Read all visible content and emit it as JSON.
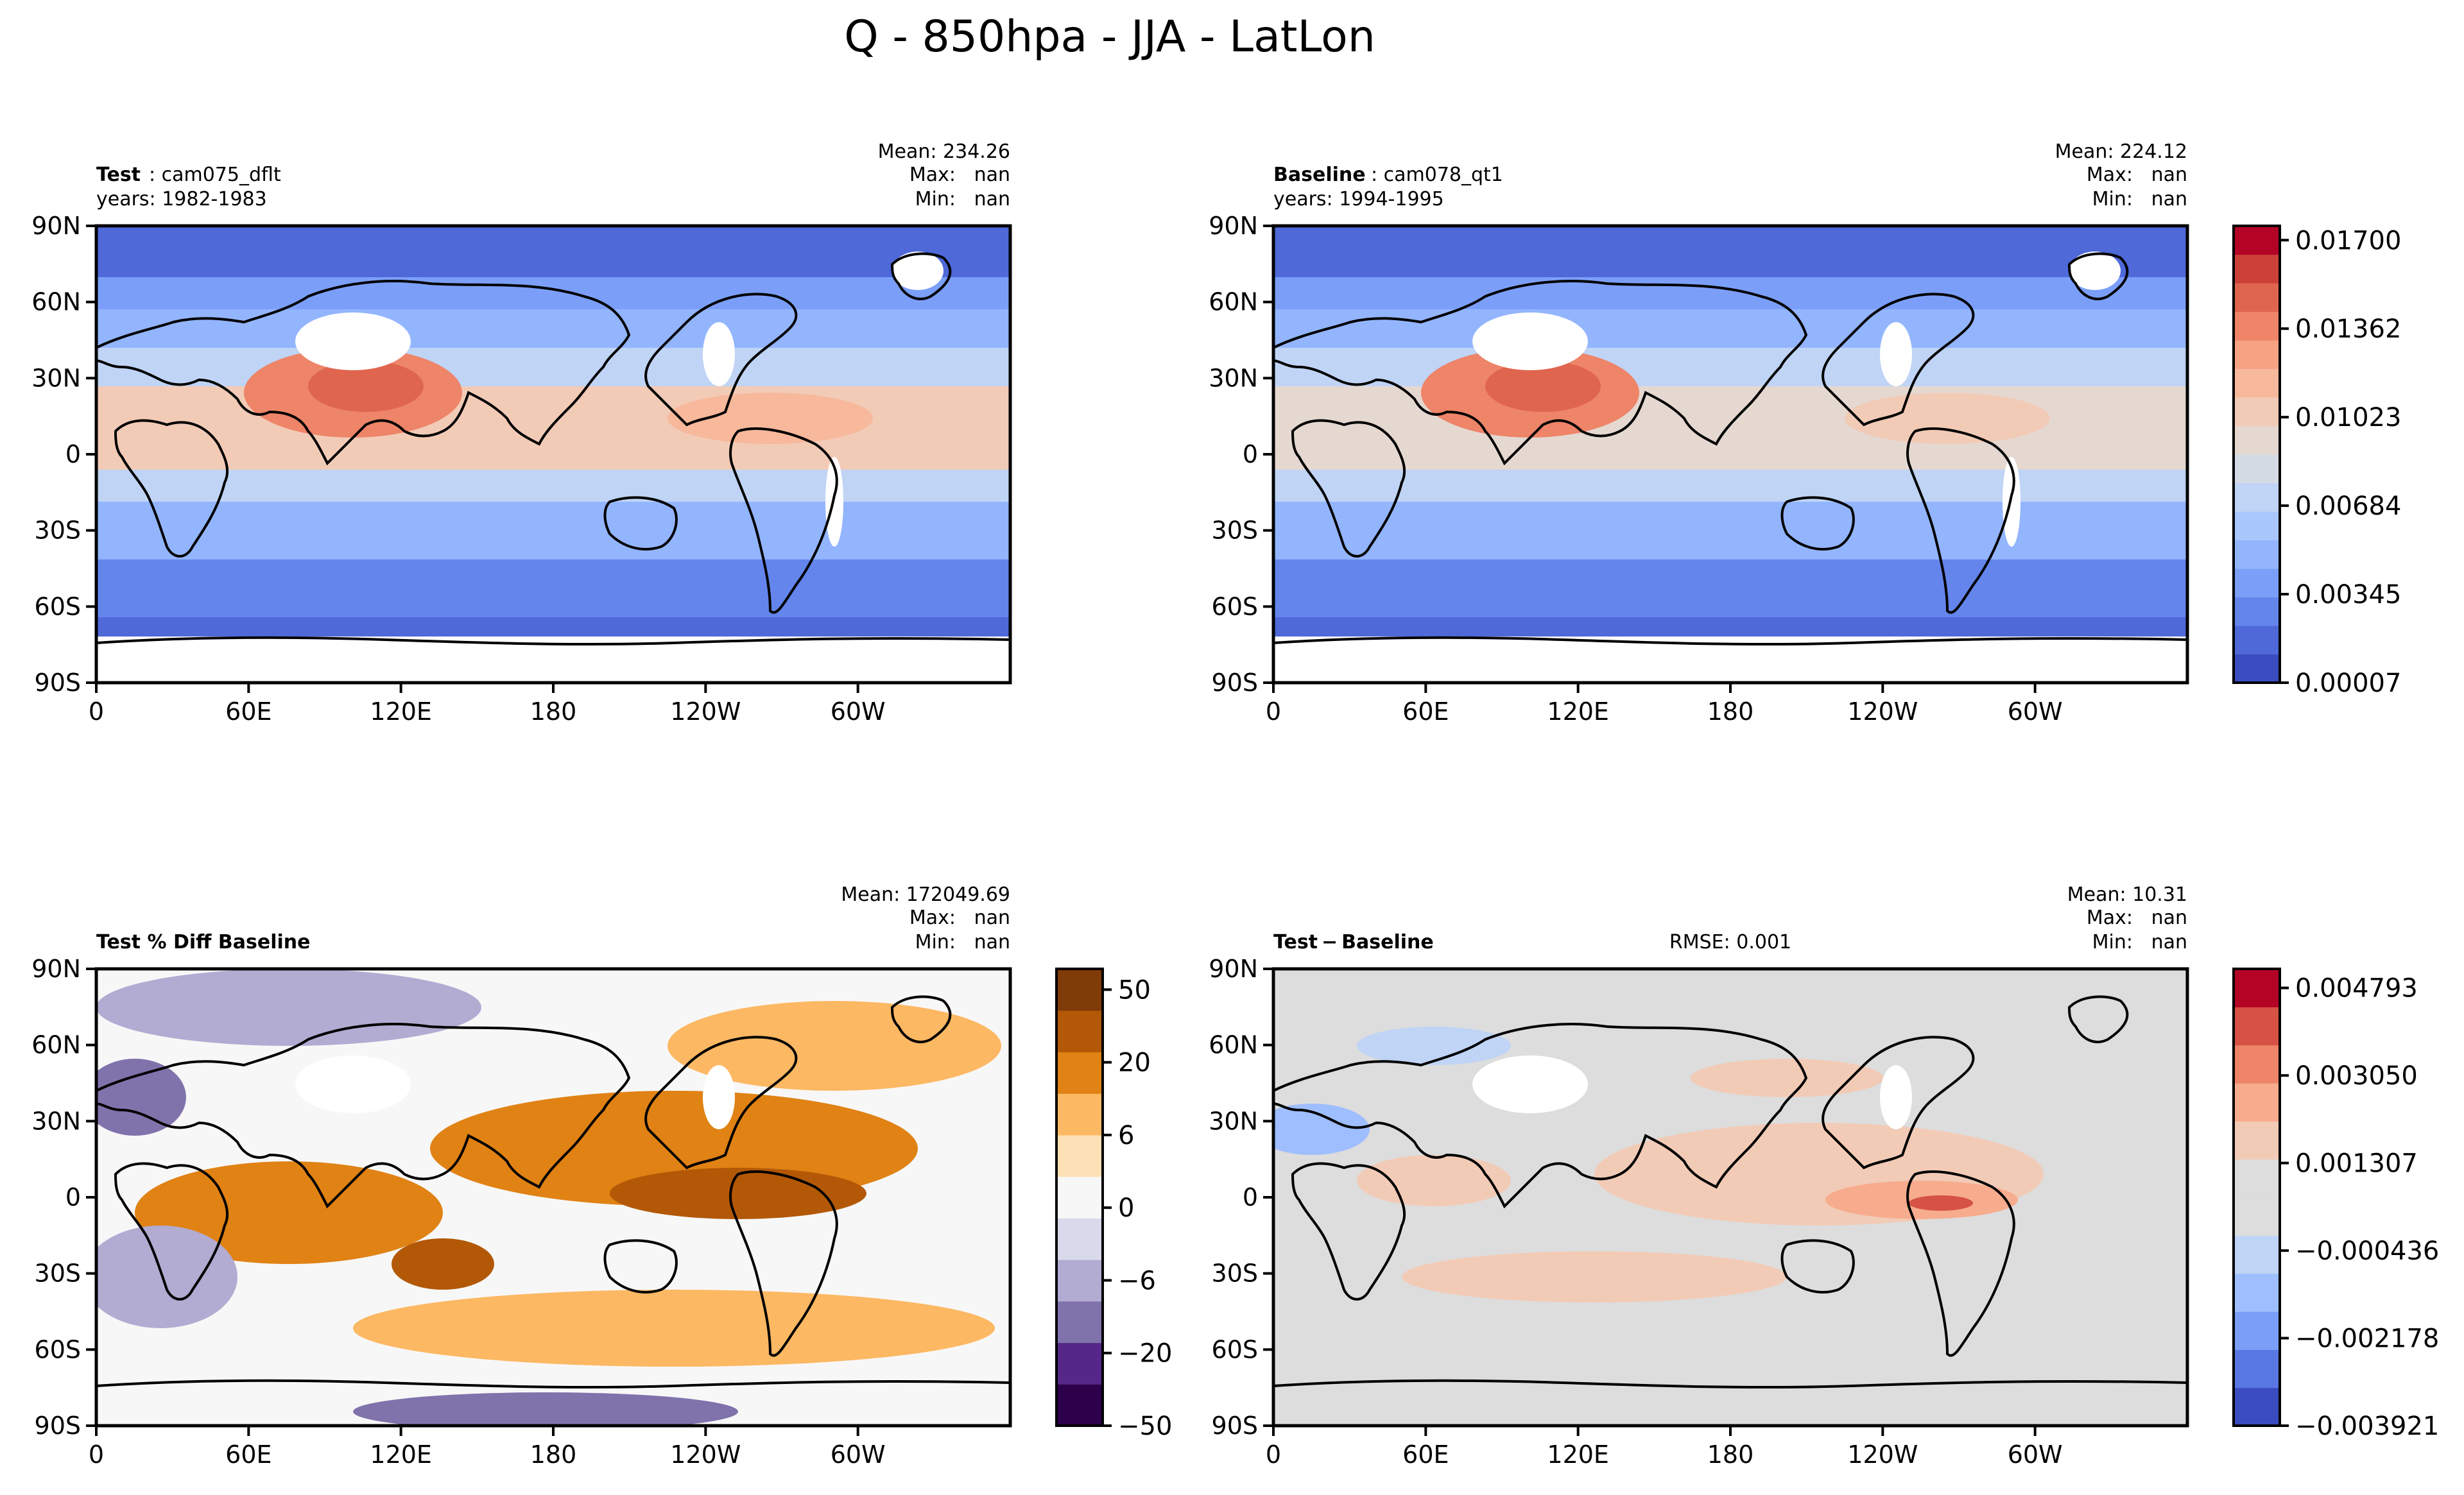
{
  "chart_data": {
    "title": "Q - 850hpa - JJA - LatLon",
    "type": "heatmap",
    "lon_ticks": [
      "0",
      "60E",
      "120E",
      "180",
      "120W",
      "60W"
    ],
    "lat_ticks": [
      "90N",
      "60N",
      "30N",
      "0",
      "30S",
      "60S",
      "90S"
    ],
    "panels": [
      {
        "id": "test",
        "label_bold": "Test",
        "label_rest": ": cam075_dflt",
        "years": "years: 1982-1983",
        "mean": "Mean: 234.26",
        "max": "Max:   nan",
        "min": "Min:   nan",
        "rmse": "",
        "colormap": "coolwarm"
      },
      {
        "id": "baseline",
        "label_bold": "Baseline",
        "label_rest": ": cam078_qt1",
        "years": "years: 1994-1995",
        "mean": "Mean: 224.12",
        "max": "Max:   nan",
        "min": "Min:   nan",
        "rmse": "",
        "colormap": "coolwarm"
      },
      {
        "id": "pctdiff",
        "label_bold": "Test % Diff Baseline",
        "label_rest": "",
        "years": "",
        "mean": "Mean: 172049.69",
        "max": "Max:   nan",
        "min": "Min:   nan",
        "rmse": "",
        "colormap": "PuOr"
      },
      {
        "id": "diff",
        "label_bold": "Test − Baseline",
        "label_rest": "",
        "years": "",
        "mean": "Mean: 10.31",
        "max": "Max:   nan",
        "min": "Min:   nan",
        "rmse": "RMSE: 0.001",
        "colormap": "coolwarm"
      }
    ],
    "colorbars": [
      {
        "id": "shared-q",
        "ticks": [
          "0.00007",
          "0.00345",
          "0.00684",
          "0.01023",
          "0.01362",
          "0.01700"
        ],
        "colors": [
          "#3b4cc0",
          "#4f69d9",
          "#6485ec",
          "#7b9ff9",
          "#93b5fe",
          "#aac7fd",
          "#c0d4f5",
          "#d5dbe5",
          "#e5d8d1",
          "#f2cbb7",
          "#f7b89c",
          "#f6a283",
          "#ee8468",
          "#e0654f",
          "#cc403a",
          "#b40426"
        ]
      },
      {
        "id": "pctdiff",
        "ticks": [
          "−50",
          "−20",
          "−6",
          "0",
          "6",
          "20",
          "50"
        ],
        "colors": [
          "#2d004b",
          "#542788",
          "#8073ac",
          "#b2abd2",
          "#d8daeb",
          "#f7f7f7",
          "#fee0b6",
          "#fdb863",
          "#e08214",
          "#b35806",
          "#7f3b08"
        ]
      },
      {
        "id": "diff",
        "ticks": [
          "−0.003921",
          "−0.002178",
          "−0.000436",
          "0.001307",
          "0.003050",
          "0.004793"
        ],
        "colors": [
          "#3b4cc0",
          "#5977e3",
          "#7b9ff9",
          "#9ebeff",
          "#c0d4f5",
          "#dddddd",
          "#dddddd",
          "#f2cbb7",
          "#f7ac8e",
          "#ee8468",
          "#d65244",
          "#b40426"
        ]
      }
    ]
  }
}
